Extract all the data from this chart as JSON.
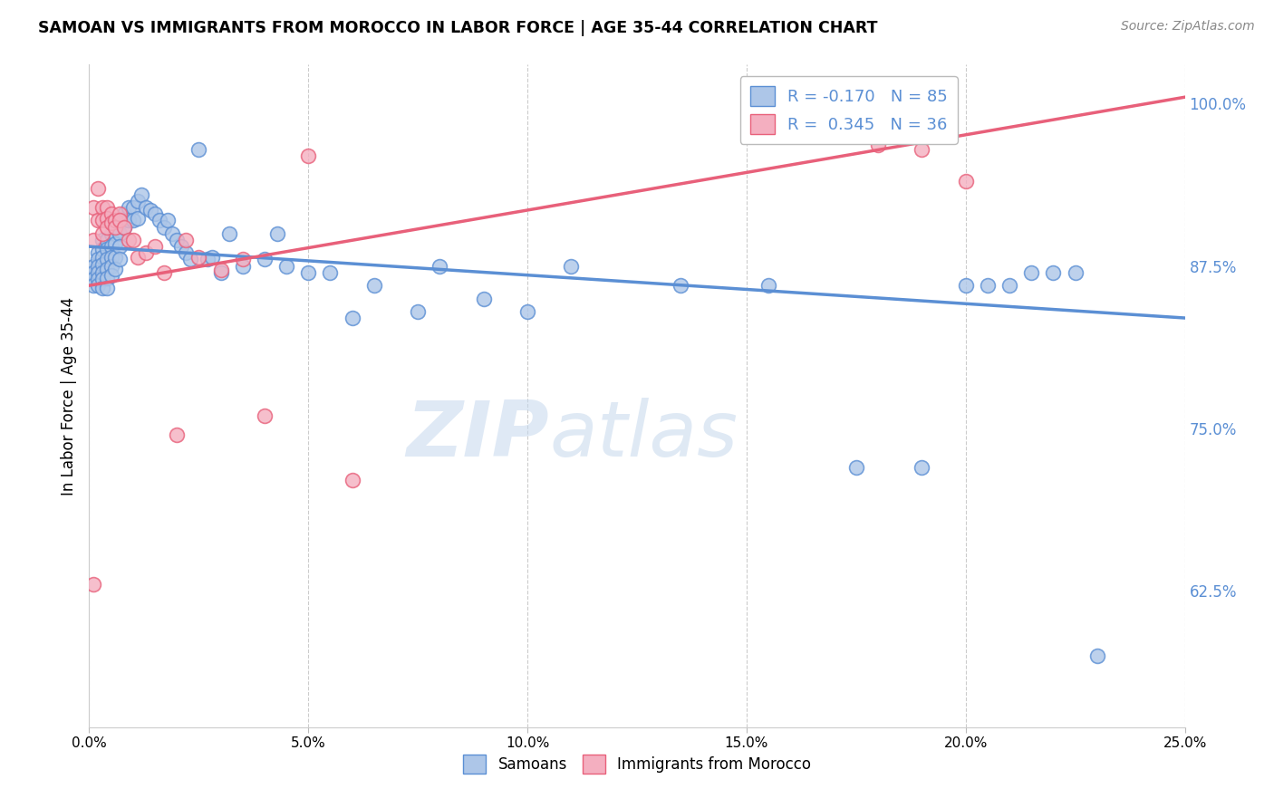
{
  "title": "SAMOAN VS IMMIGRANTS FROM MOROCCO IN LABOR FORCE | AGE 35-44 CORRELATION CHART",
  "source": "Source: ZipAtlas.com",
  "ylabel": "In Labor Force | Age 35-44",
  "xlim": [
    0.0,
    0.25
  ],
  "ylim": [
    0.52,
    1.03
  ],
  "xticks": [
    0.0,
    0.05,
    0.1,
    0.15,
    0.2,
    0.25
  ],
  "yticks_right": [
    0.625,
    0.75,
    0.875,
    1.0
  ],
  "blue_R": -0.17,
  "blue_N": 85,
  "pink_R": 0.345,
  "pink_N": 36,
  "blue_color": "#adc6e8",
  "pink_color": "#f4afc0",
  "blue_line_color": "#5b8fd4",
  "pink_line_color": "#e8607a",
  "watermark_zip": "ZIP",
  "watermark_atlas": "atlas",
  "blue_scatter_x": [
    0.001,
    0.001,
    0.001,
    0.001,
    0.002,
    0.002,
    0.002,
    0.002,
    0.002,
    0.002,
    0.003,
    0.003,
    0.003,
    0.003,
    0.003,
    0.003,
    0.003,
    0.004,
    0.004,
    0.004,
    0.004,
    0.004,
    0.004,
    0.005,
    0.005,
    0.005,
    0.005,
    0.005,
    0.006,
    0.006,
    0.006,
    0.006,
    0.007,
    0.007,
    0.007,
    0.007,
    0.008,
    0.008,
    0.009,
    0.009,
    0.01,
    0.01,
    0.011,
    0.011,
    0.012,
    0.013,
    0.014,
    0.015,
    0.016,
    0.017,
    0.018,
    0.019,
    0.02,
    0.021,
    0.022,
    0.023,
    0.025,
    0.027,
    0.028,
    0.03,
    0.032,
    0.035,
    0.04,
    0.043,
    0.045,
    0.05,
    0.055,
    0.06,
    0.065,
    0.075,
    0.08,
    0.09,
    0.1,
    0.11,
    0.135,
    0.155,
    0.175,
    0.19,
    0.2,
    0.205,
    0.21,
    0.215,
    0.22,
    0.225,
    0.23
  ],
  "blue_scatter_y": [
    0.875,
    0.87,
    0.865,
    0.86,
    0.885,
    0.88,
    0.875,
    0.87,
    0.865,
    0.86,
    0.895,
    0.888,
    0.882,
    0.876,
    0.87,
    0.865,
    0.858,
    0.895,
    0.888,
    0.88,
    0.873,
    0.866,
    0.858,
    0.9,
    0.89,
    0.882,
    0.875,
    0.868,
    0.9,
    0.892,
    0.882,
    0.873,
    0.908,
    0.9,
    0.89,
    0.88,
    0.915,
    0.905,
    0.92,
    0.91,
    0.92,
    0.91,
    0.925,
    0.912,
    0.93,
    0.92,
    0.918,
    0.915,
    0.91,
    0.905,
    0.91,
    0.9,
    0.895,
    0.89,
    0.885,
    0.88,
    0.965,
    0.88,
    0.882,
    0.87,
    0.9,
    0.875,
    0.88,
    0.9,
    0.875,
    0.87,
    0.87,
    0.835,
    0.86,
    0.84,
    0.875,
    0.85,
    0.84,
    0.875,
    0.86,
    0.86,
    0.72,
    0.72,
    0.86,
    0.86,
    0.86,
    0.87,
    0.87,
    0.87,
    0.575
  ],
  "pink_scatter_x": [
    0.001,
    0.001,
    0.001,
    0.002,
    0.002,
    0.003,
    0.003,
    0.003,
    0.004,
    0.004,
    0.004,
    0.005,
    0.005,
    0.006,
    0.006,
    0.007,
    0.007,
    0.008,
    0.009,
    0.01,
    0.011,
    0.013,
    0.015,
    0.017,
    0.02,
    0.022,
    0.025,
    0.03,
    0.035,
    0.04,
    0.05,
    0.06,
    0.175,
    0.18,
    0.19,
    0.2
  ],
  "pink_scatter_y": [
    0.63,
    0.895,
    0.92,
    0.935,
    0.91,
    0.92,
    0.91,
    0.9,
    0.92,
    0.912,
    0.905,
    0.915,
    0.908,
    0.91,
    0.905,
    0.915,
    0.91,
    0.905,
    0.895,
    0.895,
    0.882,
    0.885,
    0.89,
    0.87,
    0.745,
    0.895,
    0.882,
    0.872,
    0.88,
    0.76,
    0.96,
    0.71,
    1.0,
    0.968,
    0.965,
    0.94
  ],
  "blue_trendline_x": [
    0.0,
    0.25
  ],
  "blue_trendline_y": [
    0.89,
    0.835
  ],
  "pink_trendline_x": [
    0.0,
    0.25
  ],
  "pink_trendline_y": [
    0.86,
    1.005
  ]
}
